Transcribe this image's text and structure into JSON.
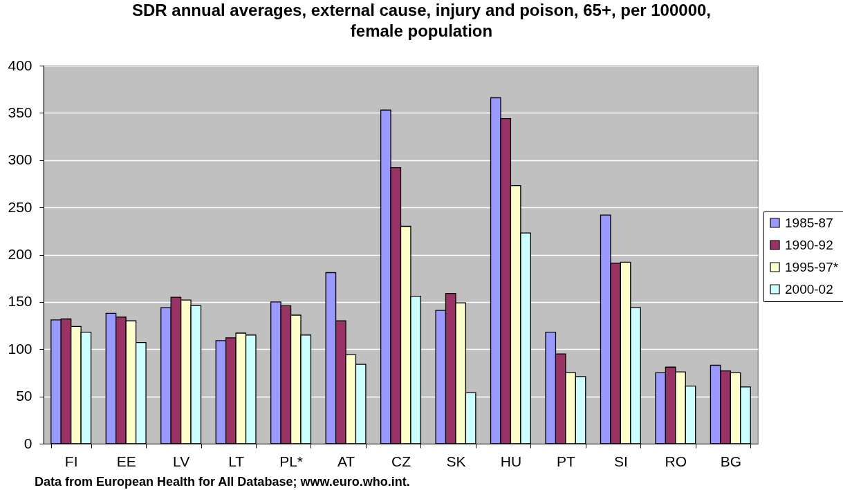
{
  "chart_data": {
    "type": "bar",
    "title": "SDR annual averages, external cause, injury and poison, 65+, per 100000, female population",
    "categories": [
      "FI",
      "EE",
      "LV",
      "LT",
      "PL*",
      "AT",
      "CZ",
      "SK",
      "HU",
      "PT",
      "SI",
      "RO",
      "BG"
    ],
    "series": [
      {
        "name": "1985-87",
        "color": "#9999ff",
        "values": [
          131,
          138,
          144,
          109,
          150,
          181,
          353,
          141,
          366,
          118,
          242,
          75,
          83
        ]
      },
      {
        "name": "1990-92",
        "color": "#993366",
        "values": [
          132,
          134,
          155,
          112,
          146,
          130,
          292,
          159,
          344,
          95,
          191,
          81,
          77
        ]
      },
      {
        "name": "1995-97*",
        "color": "#ffffcc",
        "values": [
          124,
          130,
          152,
          117,
          136,
          94,
          230,
          149,
          273,
          75,
          192,
          76,
          75
        ]
      },
      {
        "name": "2000-02",
        "color": "#ccffff",
        "values": [
          118,
          107,
          146,
          115,
          115,
          84,
          156,
          54,
          223,
          71,
          144,
          61,
          60
        ]
      }
    ],
    "ylim": [
      0,
      400
    ],
    "yticks": [
      0,
      50,
      100,
      150,
      200,
      250,
      300,
      350,
      400
    ],
    "grid": "y",
    "legend": "right",
    "annotations": [
      "Data from European Health for All Database; www.euro.who.int."
    ]
  }
}
